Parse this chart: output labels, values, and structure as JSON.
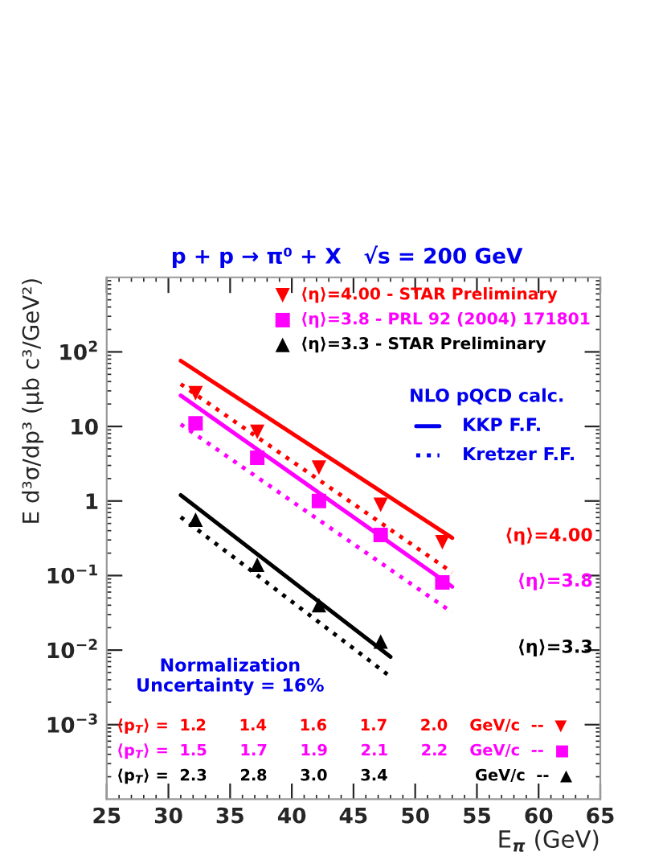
{
  "chart_data": {
    "type": "scatter",
    "title": "p + p → π⁰ + X   √s = 200 GeV",
    "xlabel": "E$_{π}$ (GeV)",
    "ylabel": "E d³σ/dp³ (μb c³/GeV²)",
    "log": true,
    "grid": false,
    "legend": "top right",
    "xlim": [
      25,
      65
    ],
    "xticks": [
      25,
      30,
      35,
      40,
      45,
      50,
      55,
      60,
      65
    ],
    "ylim": [
      0.0001,
      1000
    ],
    "yticks": [
      {
        "value": 0.001,
        "label": "10$^{−3}$"
      },
      {
        "value": 0.01,
        "label": "10$^{−2}$"
      },
      {
        "value": 0.1,
        "label": "10$^{−1}$"
      },
      1,
      10,
      {
        "value": 100,
        "label": "10$^{2}$"
      }
    ],
    "series": [
      {
        "name": "⟨η⟩=4.00 - STAR Preliminary",
        "color": "#ff0000",
        "marker": "triangle_down",
        "x": [
          32.2,
          37.2,
          42.2,
          47.2,
          52.2
        ],
        "values": [
          28,
          8.5,
          2.8,
          0.89,
          0.28
        ]
      },
      {
        "name": "⟨η⟩=3.8 - PRL 92 (2004) 171801",
        "color": "#ff00ff",
        "marker": "square",
        "x": [
          32.2,
          37.2,
          42.2,
          47.2,
          52.2
        ],
        "values": [
          11,
          3.8,
          1.0,
          0.35,
          0.081
        ]
      },
      {
        "name": "⟨η⟩=3.3 - STAR Preliminary",
        "color": "#000000",
        "marker": "triangle",
        "x": [
          32.2,
          37.2,
          42.2,
          47.2
        ],
        "values": [
          0.56,
          0.14,
          0.04,
          0.013
        ]
      },
      {
        "type": "line",
        "color": "#ff0000",
        "line_style": "solid",
        "marker": "none",
        "x": [
          31,
          53
        ],
        "values": [
          76,
          0.32
        ]
      },
      {
        "type": "line",
        "color": "#ff0000",
        "line_style": "dotted",
        "marker": "none",
        "x": [
          31,
          53
        ],
        "values": [
          37,
          0.11
        ]
      },
      {
        "type": "line",
        "color": "#ff00ff",
        "line_style": "solid",
        "marker": "none",
        "x": [
          31,
          53
        ],
        "values": [
          26,
          0.071
        ]
      },
      {
        "type": "line",
        "color": "#ff00ff",
        "line_style": "dotted",
        "marker": "none",
        "x": [
          31,
          53
        ],
        "values": [
          10.7,
          0.032
        ]
      },
      {
        "type": "line",
        "color": "#000000",
        "line_style": "solid",
        "marker": "none",
        "x": [
          31,
          48
        ],
        "values": [
          1.2,
          0.0081
        ]
      },
      {
        "type": "line",
        "color": "#000000",
        "line_style": "dotted",
        "marker": "none",
        "x": [
          31,
          48
        ],
        "values": [
          0.61,
          0.0044
        ]
      }
    ],
    "annotations": [
      "NLO pQCD calc.",
      "KKP F.F.",
      "Kretzer F.F.",
      "⟨η⟩=4.00",
      "⟨η⟩=3.8",
      "⟨η⟩=3.3",
      "Normalization\nUncertainty = 16%",
      "⟨p$_{T}$⟩ =  1.2      1.4      1.6      1.7      2.0    GeV/c  --  ▼",
      "⟨p$_{T}$⟩ =  1.5      1.7      1.9      2.1      2.2    GeV/c  --  ■",
      "⟨p$_{T}$⟩ =  2.3      2.8      3.0      3.4                GeV/c  --  ▲"
    ]
  }
}
